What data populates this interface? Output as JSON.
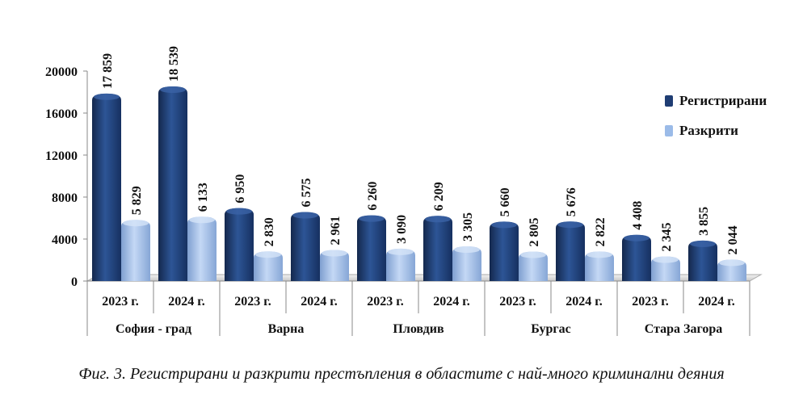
{
  "caption": "Фиг. 3. Регистрирани и разкрити престъпления в областите с най-много криминални деяния",
  "colors": {
    "registered": "#1f3d73",
    "solved": "#9bbbe8",
    "axis": "#888888"
  },
  "chart_data": {
    "type": "bar",
    "ylim": [
      0,
      20000
    ],
    "yticks": [
      "0",
      "4000",
      "8000",
      "12000",
      "16000",
      "20000"
    ],
    "ytick_values": [
      0,
      4000,
      8000,
      12000,
      16000,
      20000
    ],
    "grid": false,
    "legend_position": "right",
    "regions": [
      "София - град",
      "Варна",
      "Пловдив",
      "Бургас",
      "Стара Загора"
    ],
    "categories": [
      "2023 г.",
      "2024 г.",
      "2023 г.",
      "2024 г.",
      "2023 г.",
      "2024 г.",
      "2023 г.",
      "2024 г.",
      "2023 г.",
      "2024 г."
    ],
    "series": [
      {
        "name": "Регистрирани",
        "values": [
          17859,
          18539,
          6950,
          6575,
          6260,
          6209,
          5660,
          5676,
          4408,
          3855
        ],
        "labels": [
          "17 859",
          "18 539",
          "6 950",
          "6 575",
          "6 260",
          "6 209",
          "5 660",
          "5 676",
          "4 408",
          "3 855"
        ]
      },
      {
        "name": "Разкрити",
        "values": [
          5829,
          6133,
          2830,
          2961,
          3090,
          3305,
          2805,
          2822,
          2345,
          2044
        ],
        "labels": [
          "5 829",
          "6 133",
          "2 830",
          "2 961",
          "3 090",
          "3 305",
          "2 805",
          "2 822",
          "2 345",
          "2 044"
        ]
      }
    ]
  }
}
